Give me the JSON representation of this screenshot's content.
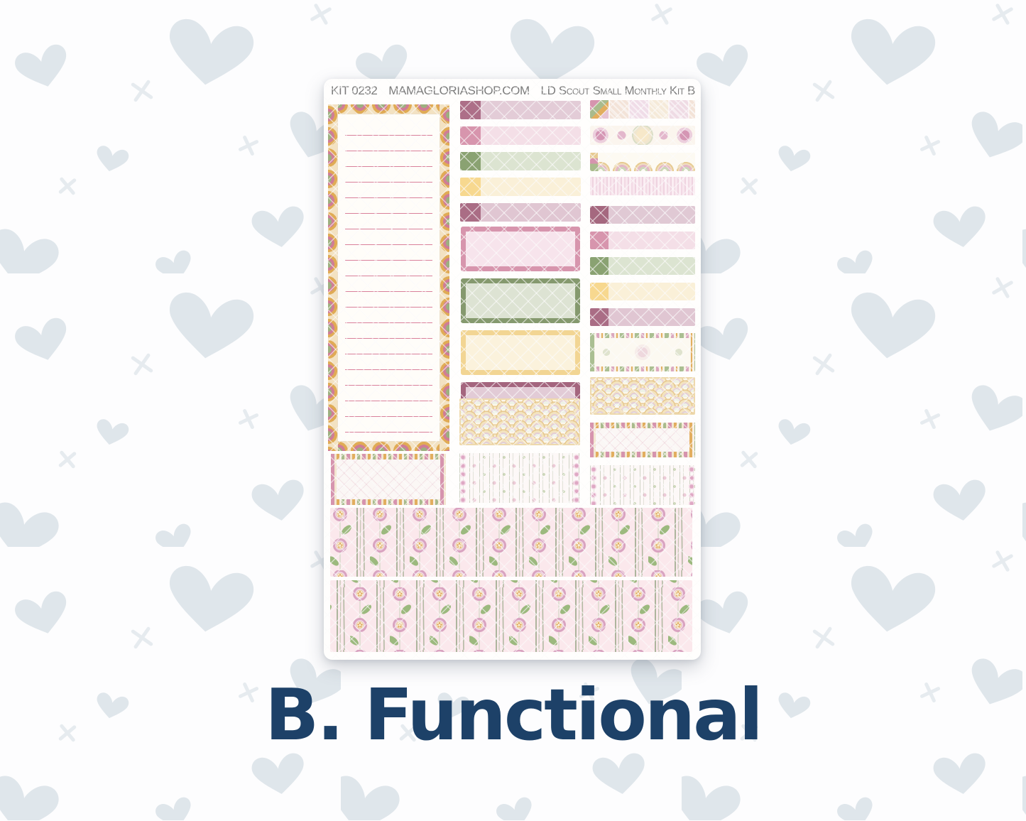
{
  "sheet": {
    "header": {
      "kit_number": "KIT 0232",
      "shop_domain": "MAMAGLORIASHOP.COM",
      "kit_title": "LD Scout Small Monthly Kit B"
    }
  },
  "caption": {
    "label": "B. Functional",
    "color": "#1d4168"
  },
  "palette": {
    "gold": "#e2ae5f",
    "pink": "#d694ae",
    "green": "#8ba274",
    "mauve": "#ad6f88",
    "maroon": "#a5687f",
    "cream": "#f5e7cb",
    "line_pink": "#d9809b",
    "heart_gray": "#dfe6eb",
    "navy": "#1d4168",
    "washi_pink": "#fbe8ec"
  },
  "stickers": {
    "notes_box": {
      "line_count": 20,
      "line_color": "#d9809b"
    },
    "middle_strips": [
      {
        "square": "#ad6f88",
        "fill": "#e3ccd7"
      },
      {
        "square": "#d795ad",
        "fill": "#f4dfe7"
      },
      {
        "square": "#8aa272",
        "fill": "#dce4d1"
      },
      {
        "square": "#f7d88f",
        "fill": "#faf0d8"
      },
      {
        "square": "#aa6d85",
        "fill": "#e0c6d2"
      }
    ],
    "middle_outline_boxes": [
      {
        "border": "#d795ad",
        "fill": "#f7e4ec"
      },
      {
        "border": "#85996e",
        "fill": "#dde3d3"
      },
      {
        "border": "#f2d593",
        "fill": "#fbf2dc"
      },
      {
        "border": "#a4657e",
        "fill": "#e2cbd6"
      }
    ],
    "right_strips": [
      {
        "square": "#a5687f",
        "fill": "#e0c9d4"
      },
      {
        "square": "#d795ad",
        "fill": "#f4dfe7"
      },
      {
        "square": "#8aa272",
        "fill": "#dce4d1"
      },
      {
        "square": "#f7d88f",
        "fill": "#faf0d8"
      },
      {
        "square": "#aa6d85",
        "fill": "#e0c6d2"
      }
    ],
    "bottom_washi_count": 2
  }
}
